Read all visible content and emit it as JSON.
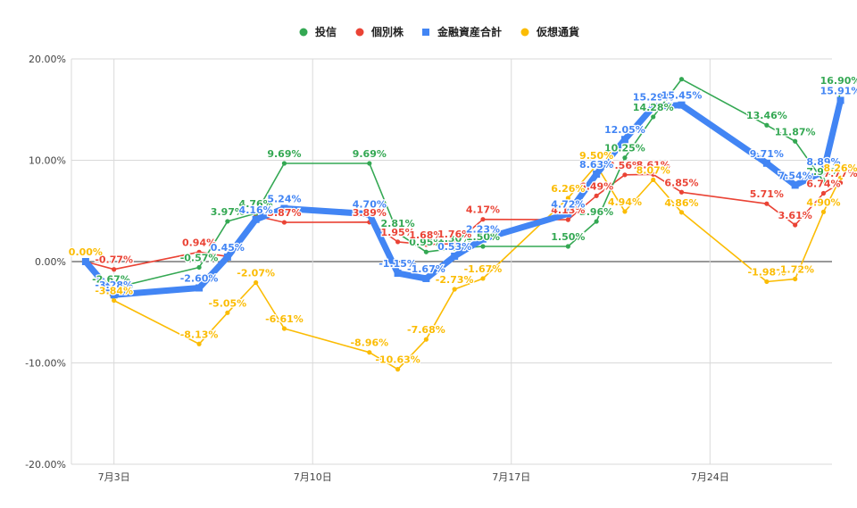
{
  "chart_data": {
    "type": "line",
    "legend_position": "top-center",
    "grid": true,
    "y_range_percent": [
      -20,
      20
    ],
    "y_ticks": [
      {
        "value": 20,
        "label": "20.00%"
      },
      {
        "value": 10,
        "label": "10.00%"
      },
      {
        "value": 0,
        "label": "0.00%"
      },
      {
        "value": -10,
        "label": "-10.00%"
      },
      {
        "value": -20,
        "label": "-20.00%"
      }
    ],
    "x_range_day": [
      1.5,
      28.3
    ],
    "x_ticks": [
      {
        "value": 3,
        "label": "7月3日"
      },
      {
        "value": 10,
        "label": "7月10日"
      },
      {
        "value": 17,
        "label": "7月17日"
      },
      {
        "value": 24,
        "label": "7月24日"
      }
    ],
    "series": [
      {
        "name": "投信",
        "color": "#34a853",
        "marker": "circle",
        "points": [
          {
            "x": 2,
            "y": 0.0,
            "label": ""
          },
          {
            "x": 2.9,
            "y": -2.67,
            "label": "-2.67%"
          },
          {
            "x": 6,
            "y": -0.57,
            "label": "-0.57%"
          },
          {
            "x": 7,
            "y": 3.97,
            "label": "3.97%"
          },
          {
            "x": 8,
            "y": 4.76,
            "label": "4.76%"
          },
          {
            "x": 9,
            "y": 9.69,
            "label": "9.69%"
          },
          {
            "x": 12,
            "y": 9.69,
            "label": "9.69%"
          },
          {
            "x": 13,
            "y": 2.81,
            "label": "2.81%"
          },
          {
            "x": 14,
            "y": 0.95,
            "label": "0.95%"
          },
          {
            "x": 15,
            "y": 1.3,
            "label": "1.30%"
          },
          {
            "x": 16,
            "y": 1.5,
            "label": "1.50%"
          },
          {
            "x": 19,
            "y": 1.5,
            "label": "1.50%"
          },
          {
            "x": 20,
            "y": 3.96,
            "label": "3.96%"
          },
          {
            "x": 21,
            "y": 10.25,
            "label": "10.25%"
          },
          {
            "x": 22,
            "y": 14.28,
            "label": "14.28%"
          },
          {
            "x": 23,
            "y": 18.0,
            "label": ""
          },
          {
            "x": 26,
            "y": 13.46,
            "label": "13.46%"
          },
          {
            "x": 27,
            "y": 11.87,
            "label": "11.87%"
          },
          {
            "x": 28,
            "y": 7.92,
            "label": "7.92%"
          },
          {
            "x": 28.6,
            "y": 16.9,
            "label": "16.90%"
          }
        ]
      },
      {
        "name": "個別株",
        "color": "#ea4335",
        "marker": "circle",
        "points": [
          {
            "x": 2,
            "y": 0.0,
            "label": ""
          },
          {
            "x": 3,
            "y": -0.77,
            "label": "-0.77%"
          },
          {
            "x": 6,
            "y": 0.94,
            "label": "0.94%"
          },
          {
            "x": 7,
            "y": 0.5,
            "label": ""
          },
          {
            "x": 8,
            "y": 4.5,
            "label": ""
          },
          {
            "x": 9,
            "y": 3.87,
            "label": "3.87%"
          },
          {
            "x": 12,
            "y": 3.89,
            "label": "3.89%"
          },
          {
            "x": 13,
            "y": 1.95,
            "label": "1.95%"
          },
          {
            "x": 14,
            "y": 1.68,
            "label": "1.68%"
          },
          {
            "x": 15,
            "y": 1.76,
            "label": "1.76%"
          },
          {
            "x": 16,
            "y": 4.17,
            "label": "4.17%"
          },
          {
            "x": 19,
            "y": 4.13,
            "label": "4.13%"
          },
          {
            "x": 20,
            "y": 6.49,
            "label": "6.49%"
          },
          {
            "x": 21,
            "y": 8.56,
            "label": "8.56%"
          },
          {
            "x": 22,
            "y": 8.61,
            "label": "8.61%"
          },
          {
            "x": 23,
            "y": 6.85,
            "label": "6.85%"
          },
          {
            "x": 26,
            "y": 5.71,
            "label": "5.71%"
          },
          {
            "x": 27,
            "y": 3.61,
            "label": "3.61%"
          },
          {
            "x": 28,
            "y": 6.74,
            "label": "6.74%"
          },
          {
            "x": 28.6,
            "y": 7.77,
            "label": "7.77%"
          }
        ]
      },
      {
        "name": "金融資産合計",
        "color": "#4285f4",
        "marker": "square",
        "points": [
          {
            "x": 2,
            "y": 0.0,
            "label": ""
          },
          {
            "x": 3,
            "y": -3.28,
            "label": "-3.28%"
          },
          {
            "x": 6,
            "y": -2.6,
            "label": "-2.60%"
          },
          {
            "x": 7,
            "y": 0.45,
            "label": "0.45%"
          },
          {
            "x": 8,
            "y": 4.16,
            "label": "4.16%"
          },
          {
            "x": 9,
            "y": 5.24,
            "label": "5.24%"
          },
          {
            "x": 12,
            "y": 4.7,
            "label": "4.70%"
          },
          {
            "x": 13,
            "y": -1.15,
            "label": "-1.15%"
          },
          {
            "x": 14,
            "y": -1.67,
            "label": "-1.67%"
          },
          {
            "x": 15,
            "y": 0.53,
            "label": "0.53%"
          },
          {
            "x": 16,
            "y": 2.23,
            "label": "2.23%"
          },
          {
            "x": 19,
            "y": 4.72,
            "label": "4.72%"
          },
          {
            "x": 20,
            "y": 8.63,
            "label": "8.63%"
          },
          {
            "x": 21,
            "y": 12.05,
            "label": "12.05%"
          },
          {
            "x": 22,
            "y": 15.29,
            "label": "15.29%"
          },
          {
            "x": 23,
            "y": 15.45,
            "label": "15.45%"
          },
          {
            "x": 26,
            "y": 9.71,
            "label": "9.71%"
          },
          {
            "x": 27,
            "y": 7.54,
            "label": "7.54%"
          },
          {
            "x": 28,
            "y": 8.89,
            "label": "8.89%"
          },
          {
            "x": 28.6,
            "y": 15.91,
            "label": "15.91%"
          }
        ]
      },
      {
        "name": "仮想通貨",
        "color": "#fbbc04",
        "marker": "circle",
        "points": [
          {
            "x": 2,
            "y": 0.0,
            "label": "0.00%"
          },
          {
            "x": 3,
            "y": -3.84,
            "label": "-3.84%"
          },
          {
            "x": 6,
            "y": -8.13,
            "label": "-8.13%"
          },
          {
            "x": 7,
            "y": -5.05,
            "label": "-5.05%"
          },
          {
            "x": 8,
            "y": -2.07,
            "label": "-2.07%"
          },
          {
            "x": 9,
            "y": -6.61,
            "label": "-6.61%"
          },
          {
            "x": 12,
            "y": -8.96,
            "label": "-8.96%"
          },
          {
            "x": 13,
            "y": -10.63,
            "label": "-10.63%"
          },
          {
            "x": 14,
            "y": -7.68,
            "label": "-7.68%"
          },
          {
            "x": 15,
            "y": -2.73,
            "label": "-2.73%"
          },
          {
            "x": 16,
            "y": -1.67,
            "label": "-1.67%"
          },
          {
            "x": 19,
            "y": 6.26,
            "label": "6.26%"
          },
          {
            "x": 20,
            "y": 9.5,
            "label": "9.50%"
          },
          {
            "x": 21,
            "y": 4.94,
            "label": "4.94%"
          },
          {
            "x": 22,
            "y": 8.07,
            "label": "8.07%"
          },
          {
            "x": 23,
            "y": 4.86,
            "label": "4.86%"
          },
          {
            "x": 26,
            "y": -1.98,
            "label": "-1.98%"
          },
          {
            "x": 27,
            "y": -1.72,
            "label": "-1.72%"
          },
          {
            "x": 28,
            "y": 4.9,
            "label": "4.90%"
          },
          {
            "x": 28.6,
            "y": 8.26,
            "label": "8.26%"
          }
        ]
      }
    ]
  }
}
